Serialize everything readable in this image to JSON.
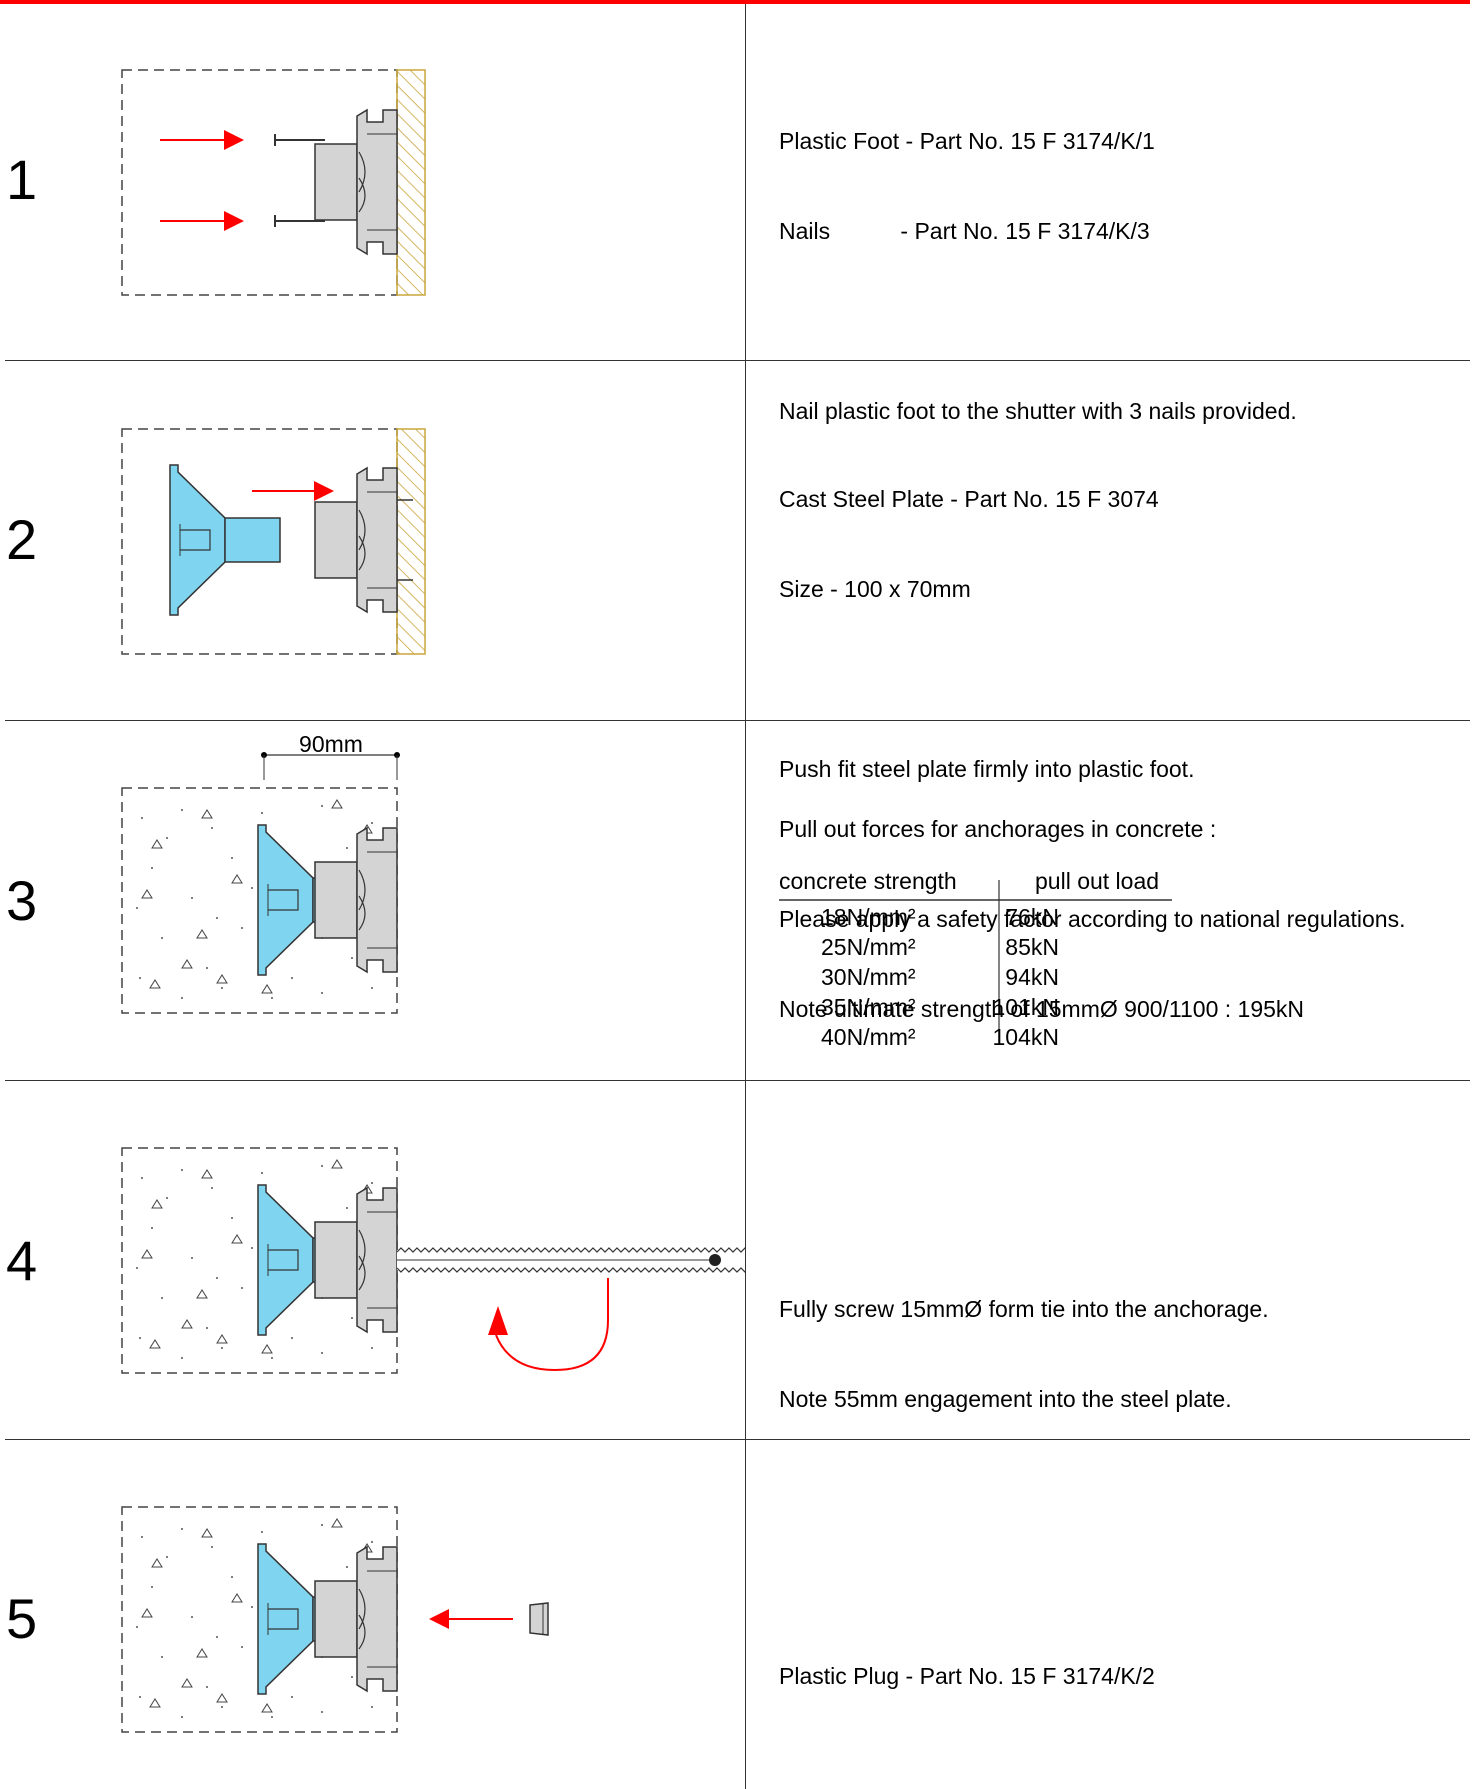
{
  "steps": [
    {
      "number": "1",
      "lines": [
        "Plastic Foot - Part No. 15 F 3174/K/1",
        "Nails           - Part No. 15 F 3174/K/3",
        "",
        "Nail plastic foot to the shutter with 3 nails provided."
      ]
    },
    {
      "number": "2",
      "lines": [
        "Cast Steel Plate - Part No. 15 F 3074",
        "Size - 100 x 70mm",
        "",
        "Push fit steel plate firmly into plastic foot."
      ]
    },
    {
      "number": "3",
      "dimension_label": "90mm",
      "lines": [
        "Pull out forces for anchorages in concrete :",
        "Please apply a safety factor according to national regulations.",
        "Note ultimate strength of 15mmØ 900/1100 : 195kN"
      ],
      "table": {
        "headers": [
          "concrete strength",
          "pull out load"
        ],
        "rows": [
          [
            "18N/mm²",
            "76kN"
          ],
          [
            "25N/mm²",
            "85kN"
          ],
          [
            "30N/mm²",
            "94kN"
          ],
          [
            "35N/mm²",
            "101kN"
          ],
          [
            "40N/mm²",
            "104kN"
          ]
        ]
      }
    },
    {
      "number": "4",
      "lines": [
        "Fully screw 15mmØ form tie into the anchorage.",
        "Note 55mm engagement into the steel plate."
      ]
    },
    {
      "number": "5",
      "lines": [
        "Plastic Plug - Part No. 15 F 3174/K/2"
      ]
    }
  ],
  "colors": {
    "accent_red": "#ff0000",
    "steel_plate_blue": "#7fd4f0",
    "plastic_grey": "#d4d4d4",
    "shutter_hatch": "#c9a53a"
  }
}
